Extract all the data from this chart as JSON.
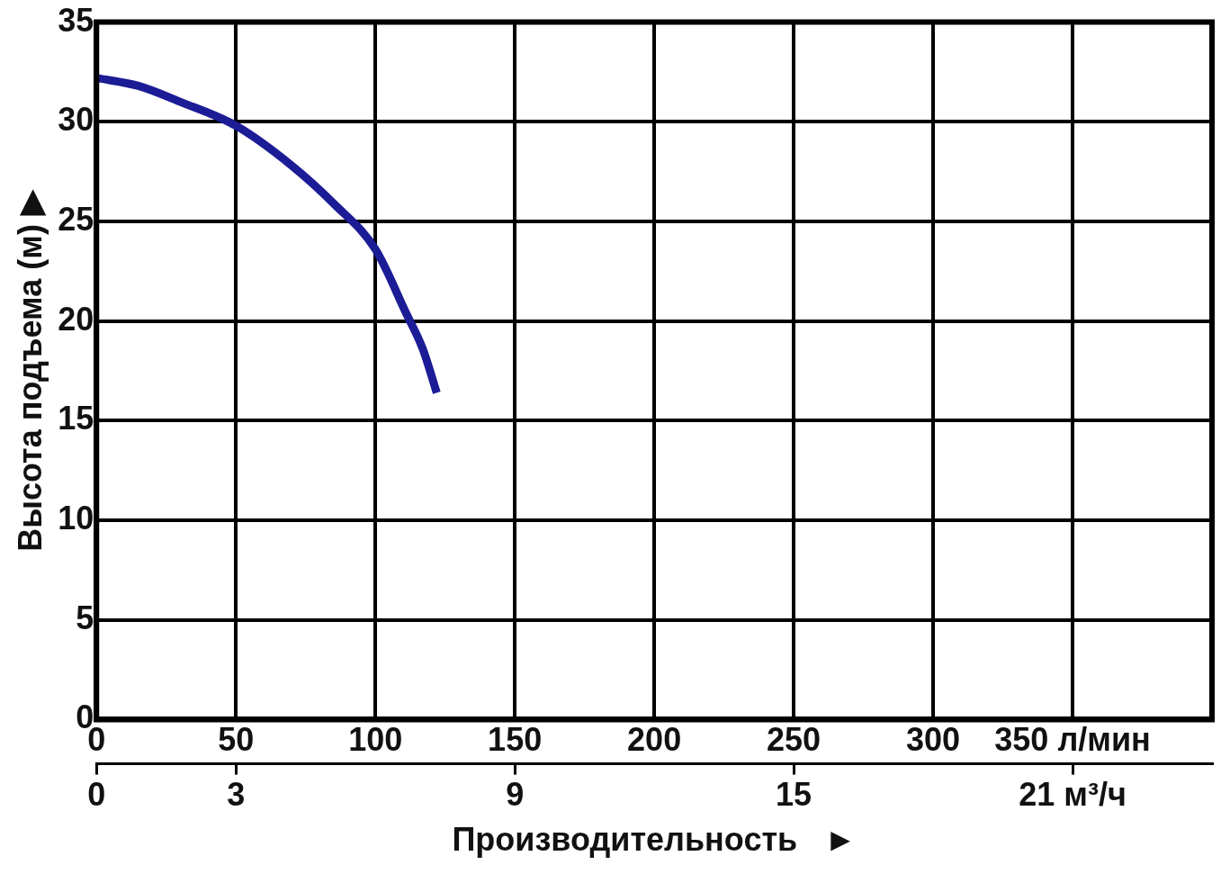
{
  "chart_data": {
    "type": "line",
    "xlabel": "Производительность   ►",
    "ylabel": "Высота подъема (м) ▶",
    "x": [
      0,
      15,
      30,
      50,
      70,
      85,
      100,
      111,
      117,
      122
    ],
    "series": [
      {
        "color": "#1c1c96",
        "values": [
          32.2,
          31.8,
          31.0,
          29.8,
          27.8,
          25.9,
          23.6,
          20.4,
          18.6,
          16.4
        ]
      }
    ],
    "xlim": [
      0,
      400
    ],
    "xticks": [
      0,
      50,
      100,
      150,
      200,
      250,
      300,
      {
        "value": 350,
        "label": "350 л/мин"
      }
    ],
    "x2lim": [
      0,
      24
    ],
    "x2ticks": [
      0,
      3,
      9,
      15,
      {
        "value": 21,
        "label": "21 м³/ч"
      }
    ],
    "ylim": [
      0,
      35
    ],
    "yticks": [
      0,
      5,
      10,
      15,
      20,
      25,
      30,
      35
    ],
    "grid": true,
    "legend": false,
    "marker": "none",
    "line_style": "solid"
  }
}
